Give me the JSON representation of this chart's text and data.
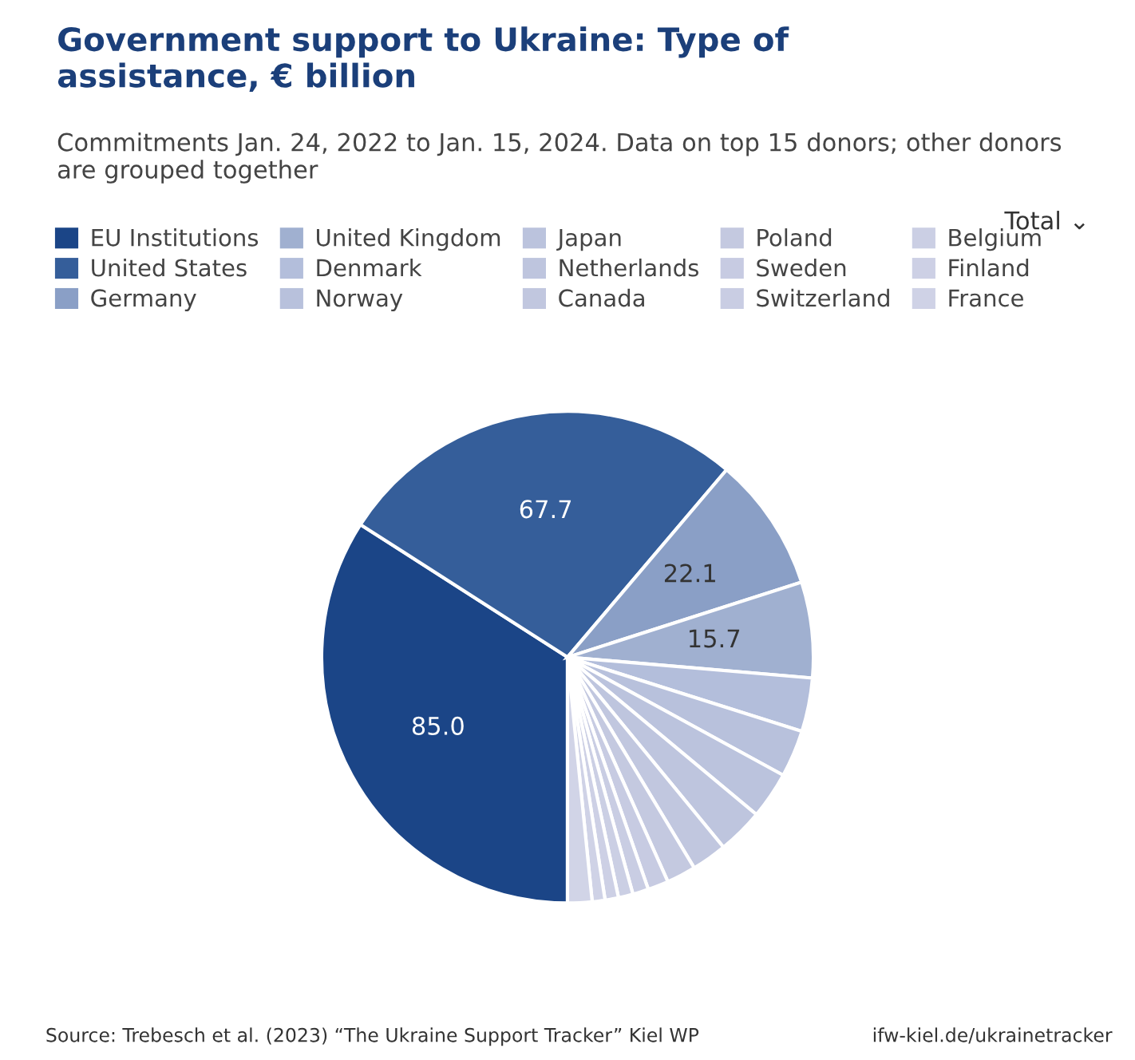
{
  "chart_data": {
    "type": "pie",
    "title": "Government support to Ukraine: Type of\nassistance, € billion",
    "subtitle": "Commitments Jan. 24, 2022 to Jan. 15, 2024. Data on top 15 donors; other donors\nare grouped together",
    "categories": [
      "EU Institutions",
      "United States",
      "Germany",
      "United Kingdom",
      "Denmark",
      "Norway",
      "Japan",
      "Netherlands",
      "Canada",
      "Poland",
      "Sweden",
      "Switzerland",
      "Belgium",
      "Finland",
      "France",
      null
    ],
    "values": [
      85.0,
      67.7,
      22.1,
      15.7,
      8.8,
      7.7,
      7.7,
      7.5,
      5.8,
      4.8,
      3.4,
      2.6,
      2.4,
      2.2,
      2.1,
      4.0
    ],
    "colors": [
      "#1b4587",
      "#355e9a",
      "#8a9fc6",
      "#a0b0d0",
      "#b3bedb",
      "#b8c1dc",
      "#bbc3dd",
      "#bec5de",
      "#c1c7df",
      "#c4c9e0",
      "#c7cbe2",
      "#c9cde3",
      "#cbcfe4",
      "#cdd0e5",
      "#cfd2e6",
      "#d1d4e7"
    ],
    "value_labels": [
      "85.0",
      "67.7",
      "22.1",
      "15.7",
      null,
      null,
      null,
      null,
      null,
      null,
      null,
      null,
      null,
      null,
      null,
      null
    ],
    "legend": "top",
    "annotations": [
      "Total ⌄",
      "Source: Trebesch et al. (2023) “The Ukraine Support Tracker” Kiel WP",
      "ifw-kiel.de/ukrainetracker"
    ]
  }
}
